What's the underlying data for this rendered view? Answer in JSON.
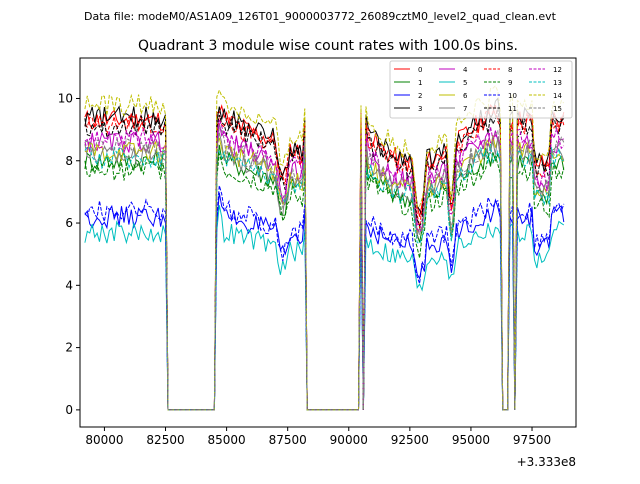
{
  "suptitle": "Data file: modeM0/AS1A09_126T01_9000003772_26089cztM0_level2_quad_clean.evt",
  "chart_data": {
    "type": "line",
    "title": "Quadrant 3 module wise count rates with 100.0s bins.",
    "xlabel": "",
    "ylabel": "",
    "x_offset_label": "+3.333e8",
    "xlim": [
      79000,
      99300
    ],
    "ylim": [
      -0.55,
      11.3
    ],
    "xticks": [
      80000,
      82500,
      85000,
      87500,
      90000,
      92500,
      95000,
      97500
    ],
    "xtick_labels": [
      "80000",
      "82500",
      "85000",
      "87500",
      "90000",
      "92500",
      "95000",
      "97500"
    ],
    "yticks": [
      0,
      2,
      4,
      6,
      8,
      10
    ],
    "ytick_labels": [
      "0",
      "2",
      "4",
      "6",
      "8",
      "10"
    ],
    "legend_position": "top-right",
    "segments": [
      [
        79200,
        82500
      ],
      [
        84600,
        88200
      ],
      [
        90500,
        90550
      ],
      [
        90650,
        96200
      ],
      [
        96550,
        96700
      ],
      [
        96900,
        98800
      ]
    ],
    "series": [
      {
        "name": "0",
        "color": "#ff0000",
        "dash": "solid",
        "level": 9.3
      },
      {
        "name": "1",
        "color": "#008000",
        "dash": "solid",
        "level": 8.0
      },
      {
        "name": "2",
        "color": "#0000ff",
        "dash": "solid",
        "level": 6.2
      },
      {
        "name": "3",
        "color": "#000000",
        "dash": "solid",
        "level": 9.4
      },
      {
        "name": "4",
        "color": "#bf00bf",
        "dash": "solid",
        "level": 8.6
      },
      {
        "name": "5",
        "color": "#00bfbf",
        "dash": "solid",
        "level": 5.7
      },
      {
        "name": "6",
        "color": "#bfbf00",
        "dash": "solid",
        "level": 8.3
      },
      {
        "name": "7",
        "color": "#808080",
        "dash": "solid",
        "level": 8.2
      },
      {
        "name": "8",
        "color": "#ff0000",
        "dash": "dashed",
        "level": 9.2
      },
      {
        "name": "9",
        "color": "#008000",
        "dash": "dashed",
        "level": 7.7
      },
      {
        "name": "10",
        "color": "#0000ff",
        "dash": "dashed",
        "level": 6.4
      },
      {
        "name": "11",
        "color": "#000000",
        "dash": "dashed",
        "level": 9.1
      },
      {
        "name": "12",
        "color": "#bf00bf",
        "dash": "dashed",
        "level": 8.7
      },
      {
        "name": "13",
        "color": "#00bfbf",
        "dash": "dashed",
        "level": 8.1
      },
      {
        "name": "14",
        "color": "#bfbf00",
        "dash": "dashed",
        "level": 9.8
      },
      {
        "name": "15",
        "color": "#808080",
        "dash": "dashed",
        "level": 8.4
      }
    ]
  }
}
